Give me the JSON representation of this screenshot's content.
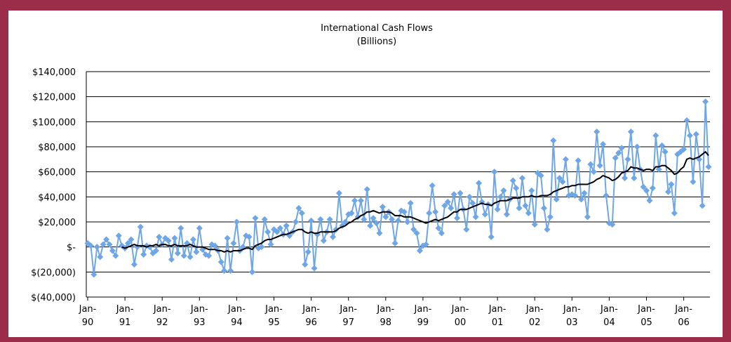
{
  "chart_data": {
    "type": "line",
    "title": "International Cash Flows",
    "subtitle": "(Billions)",
    "categories": [
      "Jan-90",
      null,
      null,
      null,
      null,
      null,
      null,
      null,
      null,
      null,
      null,
      null,
      "Jan-91",
      null,
      null,
      null,
      null,
      null,
      null,
      null,
      null,
      null,
      null,
      null,
      "Jan-92",
      null,
      null,
      null,
      null,
      null,
      null,
      null,
      null,
      null,
      null,
      null,
      "Jan-93",
      null,
      null,
      null,
      null,
      null,
      null,
      null,
      null,
      null,
      null,
      null,
      "Jan-94",
      null,
      null,
      null,
      null,
      null,
      null,
      null,
      null,
      null,
      null,
      null,
      "Jan-95",
      null,
      null,
      null,
      null,
      null,
      null,
      null,
      null,
      null,
      null,
      null,
      "Jan-96",
      null,
      null,
      null,
      null,
      null,
      null,
      null,
      null,
      null,
      null,
      null,
      "Jan-97",
      null,
      null,
      null,
      null,
      null,
      null,
      null,
      null,
      null,
      null,
      null,
      "Jan-98",
      null,
      null,
      null,
      null,
      null,
      null,
      null,
      null,
      null,
      null,
      null,
      "Jan-99",
      null,
      null,
      null,
      null,
      null,
      null,
      null,
      null,
      null,
      null,
      null,
      "Jan-00",
      null,
      null,
      null,
      null,
      null,
      null,
      null,
      null,
      null,
      null,
      null,
      "Jan-01",
      null,
      null,
      null,
      null,
      null,
      null,
      null,
      null,
      null,
      null,
      null,
      "Jan-02",
      null,
      null,
      null,
      null,
      null,
      null,
      null,
      null,
      null,
      null,
      null,
      "Jan-03",
      null,
      null,
      null,
      null,
      null,
      null,
      null,
      null,
      null,
      null,
      null,
      "Jan-04",
      null,
      null,
      null,
      null,
      null,
      null,
      null,
      null,
      null,
      null,
      null,
      "Jan-05",
      null,
      null,
      null,
      null,
      null,
      null,
      null,
      null,
      null,
      null,
      null,
      "Jan-06",
      null,
      null,
      null,
      null,
      null,
      null,
      null,
      null
    ],
    "series": [
      {
        "color": "#6ea6e6",
        "marker": "diamond",
        "values": [
          3000,
          1000,
          -22000,
          0,
          -8000,
          2000,
          6000,
          2000,
          -3000,
          -7000,
          9000,
          1000,
          -1000,
          3000,
          6000,
          -14000,
          0,
          16000,
          -6000,
          1000,
          0,
          -5000,
          -3000,
          8000,
          2000,
          7000,
          5000,
          -10000,
          7000,
          -5000,
          15000,
          -7000,
          3000,
          -8000,
          6000,
          -4000,
          15000,
          -2000,
          -6000,
          -7000,
          2000,
          1000,
          -3000,
          -12000,
          -19000,
          7000,
          -19000,
          3000,
          20000,
          -3000,
          0,
          9000,
          8000,
          -20000,
          23000,
          -1000,
          0,
          22000,
          12000,
          2000,
          14000,
          12000,
          15000,
          10000,
          17000,
          9000,
          12000,
          20000,
          31000,
          27000,
          -14000,
          -4000,
          21000,
          -17000,
          10000,
          22000,
          5000,
          12000,
          22000,
          8000,
          14000,
          43000,
          17000,
          20000,
          26000,
          27000,
          37000,
          24000,
          37000,
          22000,
          46000,
          17000,
          23000,
          19000,
          11000,
          32000,
          24000,
          28000,
          22000,
          3000,
          21000,
          29000,
          28000,
          20000,
          35000,
          14000,
          11000,
          -3000,
          1000,
          2000,
          27000,
          49000,
          28000,
          15000,
          11000,
          33000,
          36000,
          31000,
          42000,
          23000,
          43000,
          30000,
          14000,
          40000,
          35000,
          24000,
          51000,
          36000,
          26000,
          34000,
          8000,
          60000,
          30000,
          40000,
          45000,
          26000,
          38000,
          53000,
          47000,
          31000,
          55000,
          33000,
          27000,
          45000,
          18000,
          59000,
          57000,
          31000,
          14000,
          24000,
          85000,
          38000,
          55000,
          52000,
          70000,
          41000,
          42000,
          41000,
          69000,
          38000,
          43000,
          24000,
          66000,
          60000,
          92000,
          65000,
          82000,
          41000,
          19000,
          18000,
          71000,
          75000,
          79000,
          55000,
          70000,
          92000,
          55000,
          80000,
          62000,
          48000,
          45000,
          37000,
          47000,
          89000,
          62000,
          81000,
          76000,
          44000,
          50000,
          27000,
          74000,
          76000,
          78000,
          101000,
          89000,
          52000,
          90000,
          70000,
          33000,
          116000,
          64000
        ]
      },
      {
        "color": "#000000",
        "values": [
          null,
          null,
          null,
          null,
          null,
          null,
          null,
          null,
          null,
          null,
          null,
          0,
          -1000,
          0,
          1000,
          2000,
          1000,
          1000,
          1000,
          0,
          1000,
          1000,
          2000,
          1000,
          2000,
          2000,
          1000,
          1000,
          2000,
          1000,
          1000,
          1000,
          1000,
          2000,
          1000,
          0,
          0,
          0,
          -1000,
          -2000,
          -2000,
          -2000,
          -3000,
          -3000,
          -4000,
          -3000,
          -4000,
          -3000,
          -3000,
          -3000,
          -2000,
          -1000,
          -1000,
          -2000,
          1000,
          2000,
          3000,
          5000,
          6000,
          6000,
          7000,
          8000,
          9000,
          10000,
          10000,
          11000,
          12000,
          13000,
          14000,
          14000,
          12000,
          11000,
          12000,
          11000,
          11000,
          12000,
          12000,
          12000,
          12000,
          12000,
          13000,
          15000,
          16000,
          17000,
          19000,
          20000,
          22000,
          23000,
          25000,
          26000,
          28000,
          28000,
          29000,
          28000,
          27000,
          28000,
          28000,
          28000,
          27000,
          25000,
          25000,
          25000,
          24000,
          24000,
          24000,
          23000,
          22000,
          21000,
          20000,
          19000,
          20000,
          21000,
          22000,
          21000,
          22000,
          23000,
          24000,
          26000,
          28000,
          28000,
          30000,
          30000,
          30000,
          31000,
          32000,
          33000,
          34000,
          35000,
          34000,
          34000,
          33000,
          35000,
          36000,
          37000,
          37000,
          37000,
          38000,
          39000,
          39000,
          39000,
          40000,
          40000,
          40000,
          41000,
          40000,
          40000,
          41000,
          41000,
          41000,
          42000,
          44000,
          45000,
          46000,
          47000,
          48000,
          48000,
          49000,
          49000,
          50000,
          50000,
          50000,
          50000,
          51000,
          52000,
          54000,
          55000,
          57000,
          56000,
          55000,
          53000,
          54000,
          56000,
          59000,
          60000,
          61000,
          64000,
          63000,
          63000,
          62000,
          61000,
          62000,
          62000,
          61000,
          64000,
          64000,
          65000,
          65000,
          63000,
          61000,
          58000,
          59000,
          62000,
          64000,
          70000,
          71000,
          70000,
          71000,
          72000,
          74000,
          76000,
          73000
        ]
      }
    ],
    "ylim": [
      -40000,
      140000
    ],
    "yticks": [
      {
        "value": -40000,
        "label": "$(40,000)"
      },
      {
        "value": -20000,
        "label": "$(20,000)"
      },
      {
        "value": 0,
        "label": "$-"
      },
      {
        "value": 20000,
        "label": "$20,000"
      },
      {
        "value": 40000,
        "label": "$40,000"
      },
      {
        "value": 60000,
        "label": "$60,000"
      },
      {
        "value": 80000,
        "label": "$80,000"
      },
      {
        "value": 100000,
        "label": "$100,000"
      },
      {
        "value": 120000,
        "label": "$120,000"
      },
      {
        "value": 140000,
        "label": "$140,000"
      }
    ],
    "grid": true
  }
}
